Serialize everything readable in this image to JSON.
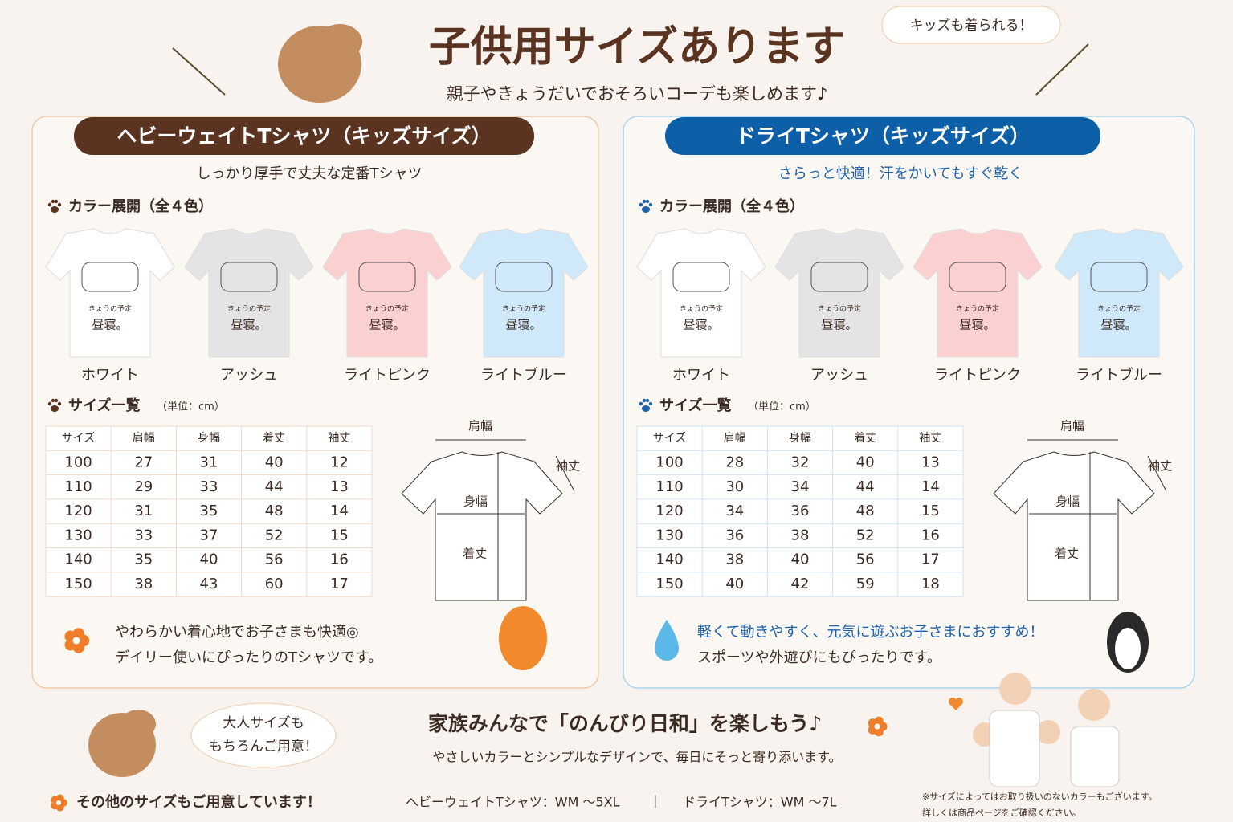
{
  "header": {
    "title": "子供用サイズあります",
    "subtitle": "親子やきょうだいでおそろいコーデも楽しめます♪",
    "bubble": "キッズも着られる！"
  },
  "shirt_print": [
    "きょうの予定",
    "昼寝。"
  ],
  "panels": [
    {
      "title": "ヘビーウェイトTシャツ（キッズサイズ）",
      "tagline": "しっかり厚手で丈夫な定番Tシャツ",
      "colors_heading": "カラー展開（全４色）",
      "colors": [
        {
          "name": "ホワイト",
          "color": "#ffffff"
        },
        {
          "name": "アッシュ",
          "color": "#e4e4e4"
        },
        {
          "name": "ライトピンク",
          "color": "#fbd0d0"
        },
        {
          "name": "ライトブルー",
          "color": "#cfe9fa"
        }
      ],
      "size_heading": "サイズ一覧",
      "size_unit": "（単位：cm）",
      "table": {
        "header": [
          "サイズ",
          "肩幅",
          "身幅",
          "着丈",
          "袖丈"
        ],
        "rows": [
          [
            100,
            27,
            31,
            40,
            12
          ],
          [
            110,
            29,
            33,
            44,
            13
          ],
          [
            120,
            31,
            35,
            48,
            14
          ],
          [
            130,
            33,
            37,
            52,
            15
          ],
          [
            140,
            35,
            40,
            56,
            16
          ],
          [
            150,
            38,
            43,
            60,
            17
          ]
        ]
      },
      "diagram": {
        "shoulder": "肩幅",
        "sleeve": "袖丈",
        "body_width": "身幅",
        "length": "着丈"
      },
      "note": [
        "やわらかい着心地でお子さまも快適◎",
        "デイリー使いにぴったりのTシャツです。"
      ]
    },
    {
      "title": "ドライTシャツ（キッズサイズ）",
      "tagline": "さらっと快適！汗をかいてもすぐ乾く",
      "colors_heading": "カラー展開（全４色）",
      "colors": [
        {
          "name": "ホワイト",
          "color": "#ffffff"
        },
        {
          "name": "アッシュ",
          "color": "#e4e4e4"
        },
        {
          "name": "ライトピンク",
          "color": "#fbd0d0"
        },
        {
          "name": "ライトブルー",
          "color": "#cfe9fa"
        }
      ],
      "size_heading": "サイズ一覧",
      "size_unit": "（単位：cm）",
      "table": {
        "header": [
          "サイズ",
          "肩幅",
          "身幅",
          "着丈",
          "袖丈"
        ],
        "rows": [
          [
            100,
            28,
            32,
            40,
            13
          ],
          [
            110,
            30,
            34,
            44,
            14
          ],
          [
            120,
            34,
            36,
            48,
            15
          ],
          [
            130,
            36,
            38,
            52,
            16
          ],
          [
            140,
            38,
            40,
            56,
            17
          ],
          [
            150,
            40,
            42,
            59,
            18
          ]
        ]
      },
      "diagram": {
        "shoulder": "肩幅",
        "sleeve": "袖丈",
        "body_width": "身幅",
        "length": "着丈"
      },
      "note": [
        "軽くて動きやすく、元気に遊ぶお子さまにおすすめ！",
        "スポーツや外遊びにもぴったりです。"
      ]
    }
  ],
  "footer": {
    "bubble": [
      "大人サイズも",
      "もちろんご用意！"
    ],
    "title": "家族みんなで「のんびり日和」を楽しもう♪",
    "subtitle": "やさしいカラーとシンプルなデザインで、毎日にそっと寄り添います。",
    "other_sizes": "その他のサイズもご用意しています！",
    "heavy_range": "ヘビーウェイトTシャツ：WM ～5XL",
    "separator": "｜",
    "dry_range": "ドライTシャツ：WM ～7L",
    "notes": [
      "※サイズによってはお取り扱いのないカラーもございます。",
      "詳しくは商品ページをご確認ください。"
    ]
  }
}
